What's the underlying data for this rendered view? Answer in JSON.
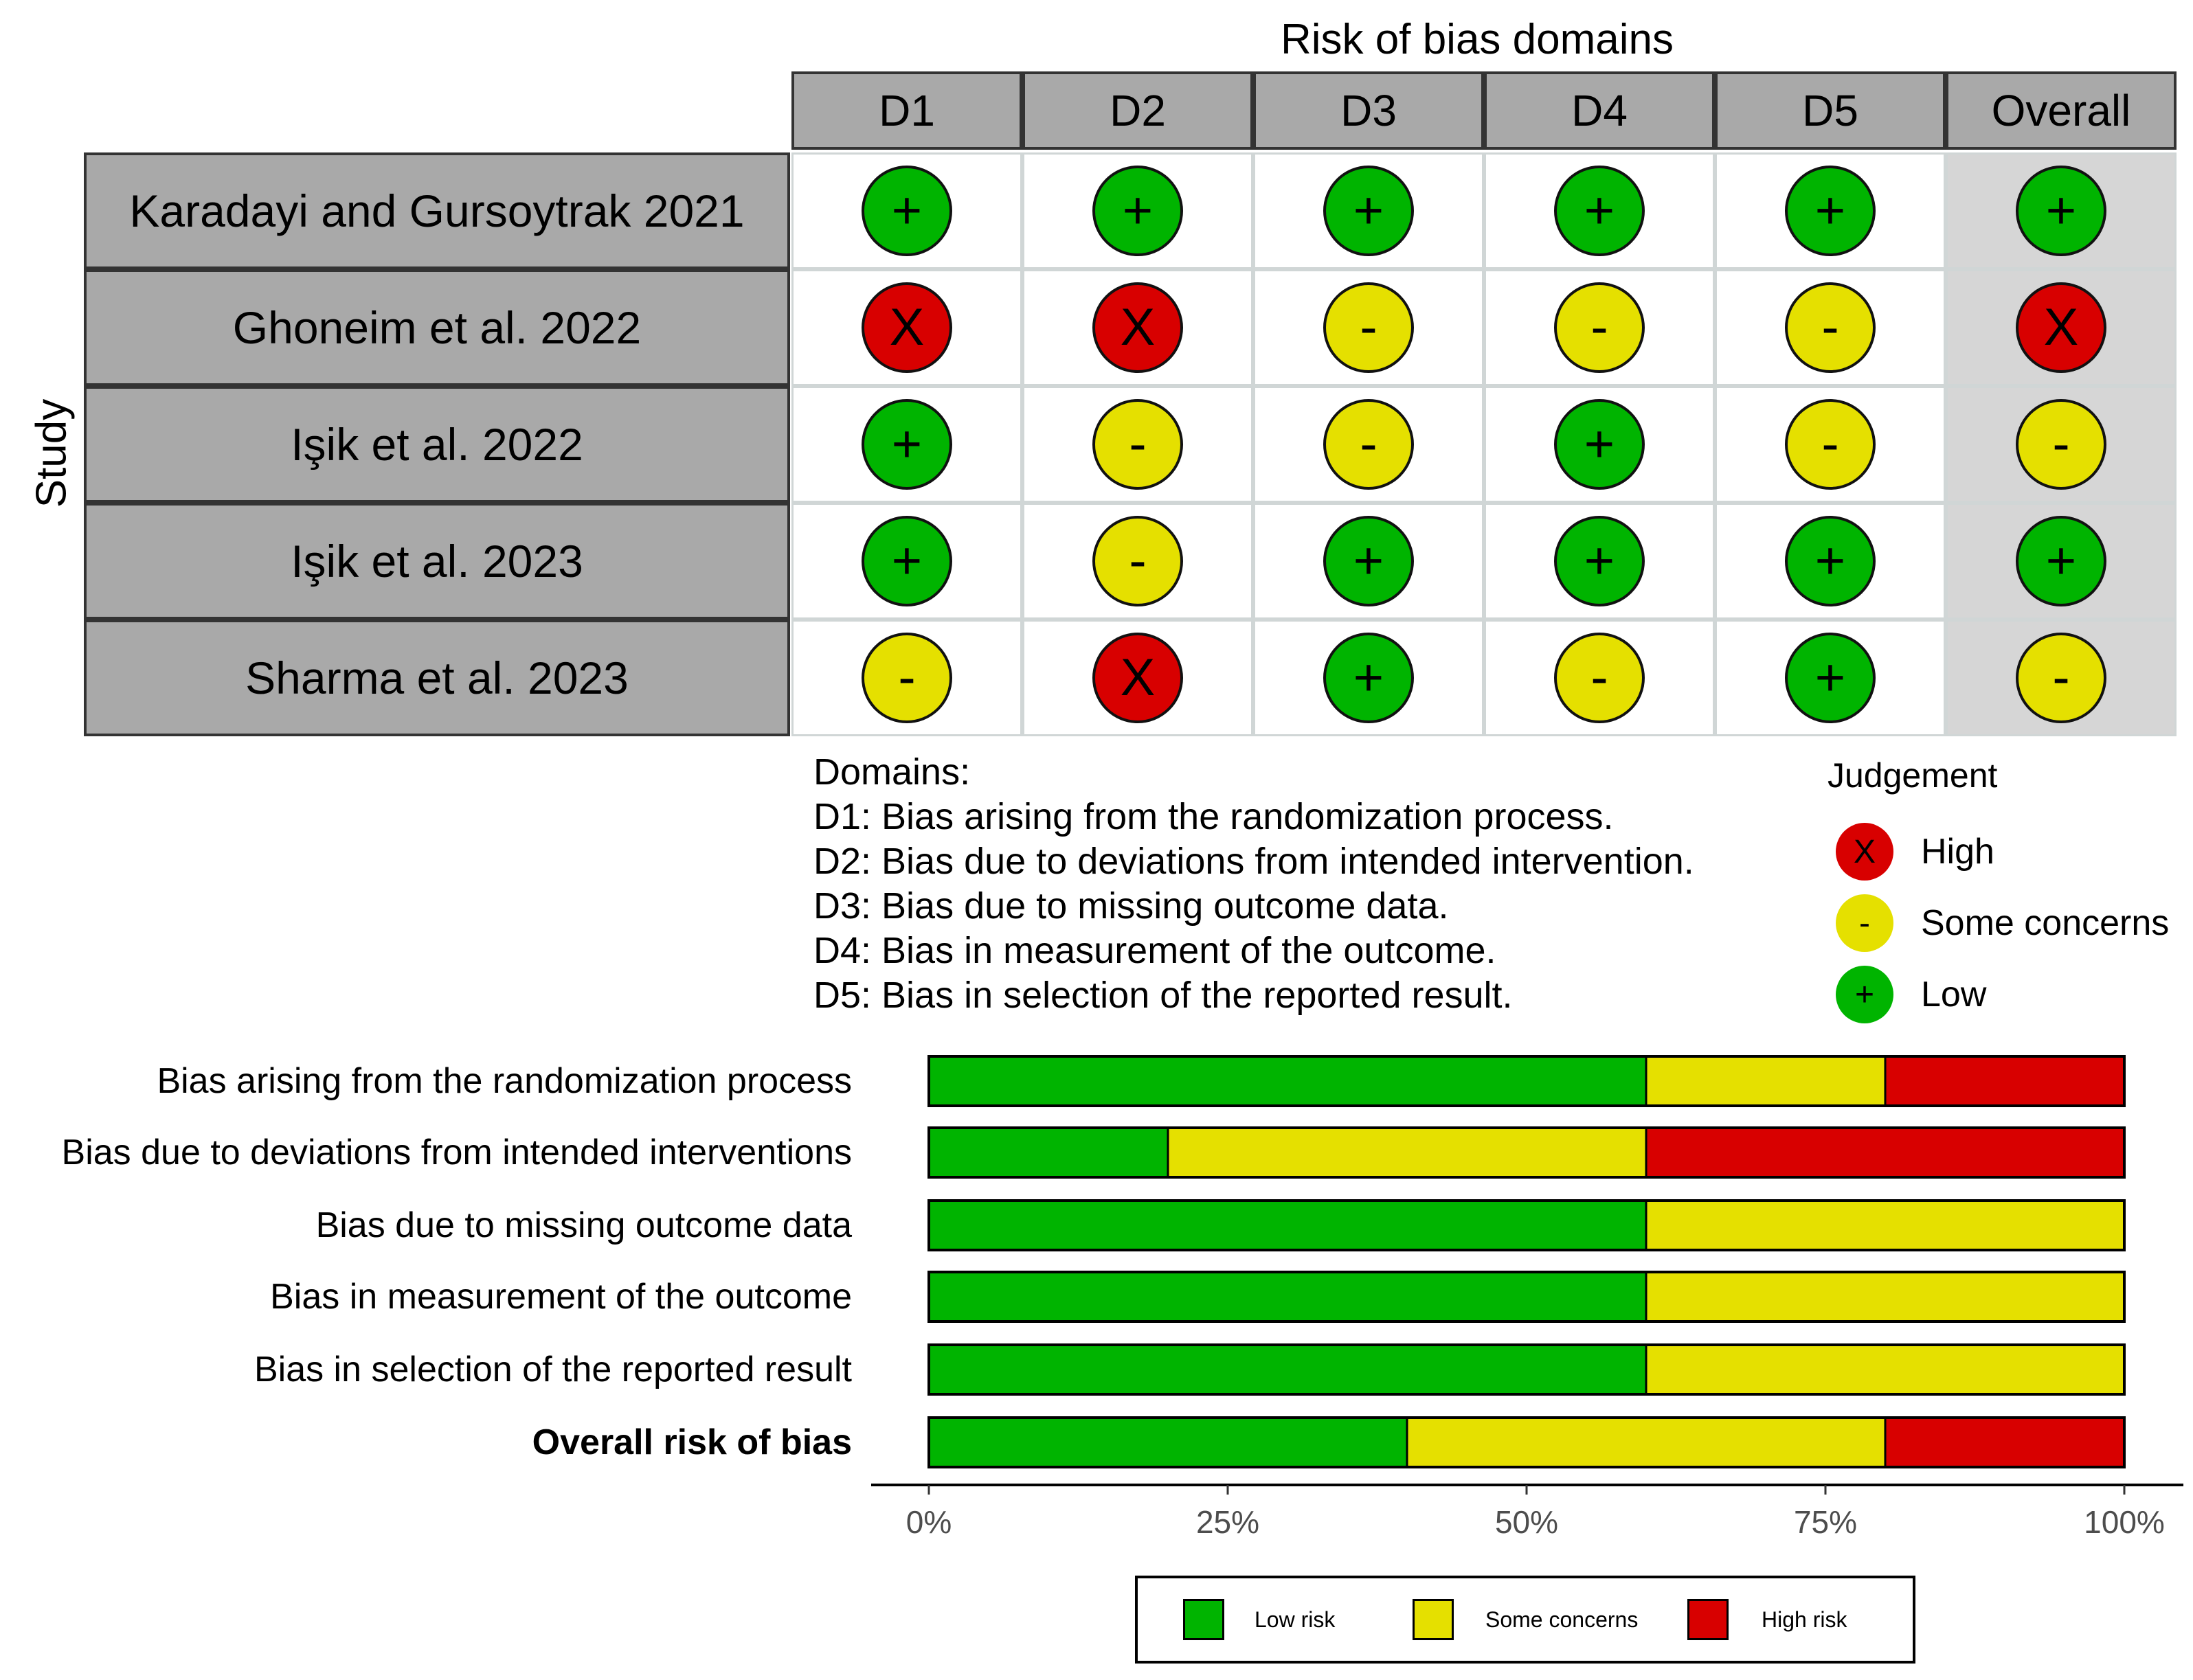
{
  "top_title": "Risk of bias domains",
  "study_axis_label": "Study",
  "columns": [
    "D1",
    "D2",
    "D3",
    "D4",
    "D5",
    "Overall"
  ],
  "studies": [
    {
      "name": "Karadayi and Gursoytrak 2021",
      "judgements": [
        "low",
        "low",
        "low",
        "low",
        "low",
        "low"
      ]
    },
    {
      "name": "Ghoneim et al. 2022",
      "judgements": [
        "high",
        "high",
        "some",
        "some",
        "some",
        "high"
      ]
    },
    {
      "name": "Işik et al. 2022",
      "judgements": [
        "low",
        "some",
        "some",
        "low",
        "some",
        "some"
      ]
    },
    {
      "name": "Işik et al. 2023",
      "judgements": [
        "low",
        "some",
        "low",
        "low",
        "low",
        "low"
      ]
    },
    {
      "name": "Sharma et al. 2023",
      "judgements": [
        "some",
        "high",
        "low",
        "some",
        "low",
        "some"
      ]
    }
  ],
  "symbols": {
    "low": "+",
    "some": "-",
    "high": "X"
  },
  "colors": {
    "low": "#00b400",
    "some": "#e5e000",
    "high": "#d80000"
  },
  "domains_legend": {
    "heading": "Domains:",
    "items": [
      "D1: Bias arising from the randomization process.",
      "D2: Bias due to deviations from intended intervention.",
      "D3: Bias due to missing outcome data.",
      "D4: Bias in measurement of the outcome.",
      "D5: Bias in selection of the reported result."
    ]
  },
  "judgement_legend": {
    "title": "Judgement",
    "items": [
      {
        "key": "high",
        "label": "High"
      },
      {
        "key": "some",
        "label": "Some concerns"
      },
      {
        "key": "low",
        "label": "Low"
      }
    ]
  },
  "chart_data": {
    "type": "bar",
    "orientation": "horizontal",
    "stacked": true,
    "categories": [
      "Bias arising from the randomization process",
      "Bias due to deviations from intended interventions",
      "Bias due to missing outcome data",
      "Bias in measurement of the outcome",
      "Bias in selection of the reported result",
      "Overall risk of bias"
    ],
    "bold_category": "Overall risk of bias",
    "series": [
      {
        "name": "Low risk",
        "color": "#00b400",
        "values": [
          60,
          20,
          60,
          60,
          60,
          40
        ]
      },
      {
        "name": "Some concerns",
        "color": "#e5e000",
        "values": [
          20,
          40,
          40,
          40,
          40,
          40
        ]
      },
      {
        "name": "High risk",
        "color": "#d80000",
        "values": [
          20,
          40,
          0,
          0,
          0,
          20
        ]
      }
    ],
    "xlim": [
      0,
      100
    ],
    "xticks": [
      "0%",
      "25%",
      "50%",
      "75%",
      "100%"
    ],
    "legend_position": "bottom"
  }
}
